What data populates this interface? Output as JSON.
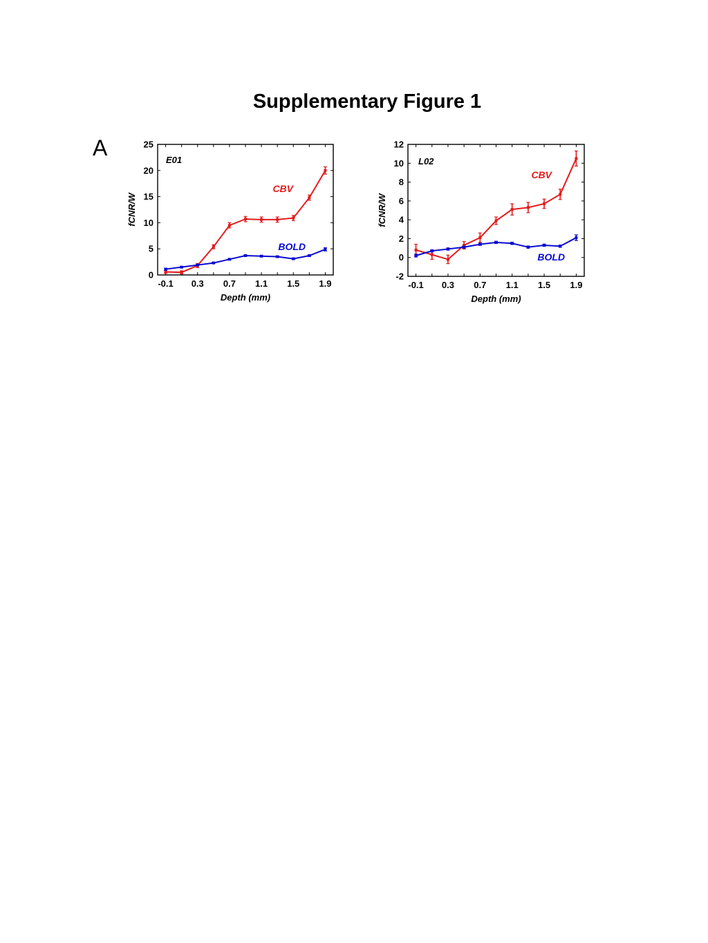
{
  "page": {
    "title": "Supplementary Figure 1",
    "panel_label": "A"
  },
  "chart_data": [
    {
      "type": "line",
      "panel": "E01",
      "xlabel": "Depth (mm)",
      "ylabel": "fCNR/W",
      "xlim": [
        -0.2,
        2.0
      ],
      "ylim": [
        0,
        25
      ],
      "xticks": [
        "-0.1",
        "0.3",
        "0.7",
        "1.1",
        "1.5",
        "1.9"
      ],
      "xtick_values": [
        -0.1,
        0.3,
        0.7,
        1.1,
        1.5,
        1.9
      ],
      "yticks": [
        "0",
        "5",
        "10",
        "15",
        "20",
        "25"
      ],
      "ytick_values": [
        0,
        5,
        10,
        15,
        20,
        25
      ],
      "grid": false,
      "x": [
        -0.1,
        0.1,
        0.3,
        0.5,
        0.7,
        0.9,
        1.1,
        1.3,
        1.5,
        1.7,
        1.9
      ],
      "series": [
        {
          "name": "CBV",
          "color": "#e41a1c",
          "values": [
            0.6,
            0.5,
            1.8,
            5.4,
            9.5,
            10.7,
            10.6,
            10.6,
            10.9,
            14.8,
            20.0
          ],
          "errors": [
            0.3,
            0.3,
            0.4,
            0.4,
            0.5,
            0.5,
            0.5,
            0.5,
            0.5,
            0.5,
            0.7
          ]
        },
        {
          "name": "BOLD",
          "color": "#0a0ad0",
          "values": [
            1.1,
            1.5,
            1.9,
            2.3,
            3.0,
            3.7,
            3.6,
            3.5,
            3.1,
            3.7,
            4.9
          ],
          "errors": [
            0.2,
            0.15,
            0.15,
            0.15,
            0.15,
            0.15,
            0.15,
            0.15,
            0.15,
            0.15,
            0.3
          ]
        }
      ]
    },
    {
      "type": "line",
      "panel": "L02",
      "xlabel": "Depth (mm)",
      "ylabel": "fCNR/W",
      "xlim": [
        -0.2,
        2.0
      ],
      "ylim": [
        -2,
        12
      ],
      "xticks": [
        "-0.1",
        "0.3",
        "0.7",
        "1.1",
        "1.5",
        "1.9"
      ],
      "xtick_values": [
        -0.1,
        0.3,
        0.7,
        1.1,
        1.5,
        1.9
      ],
      "yticks": [
        "-2",
        "0",
        "2",
        "4",
        "6",
        "8",
        "10",
        "12"
      ],
      "ytick_values": [
        -2,
        0,
        2,
        4,
        6,
        8,
        10,
        12
      ],
      "grid": false,
      "x": [
        -0.1,
        0.1,
        0.3,
        0.5,
        0.7,
        0.9,
        1.1,
        1.3,
        1.5,
        1.7,
        1.9
      ],
      "series": [
        {
          "name": "CBV",
          "color": "#e41a1c",
          "values": [
            0.8,
            0.3,
            -0.2,
            1.3,
            2.1,
            3.9,
            5.1,
            5.3,
            5.7,
            6.7,
            10.5
          ],
          "errors": [
            0.6,
            0.5,
            0.45,
            0.4,
            0.5,
            0.4,
            0.6,
            0.55,
            0.5,
            0.55,
            0.8
          ]
        },
        {
          "name": "BOLD",
          "color": "#0a0ad0",
          "values": [
            0.2,
            0.7,
            0.9,
            1.1,
            1.4,
            1.6,
            1.5,
            1.1,
            1.3,
            1.2,
            2.1
          ],
          "errors": [
            0.15,
            0.12,
            0.12,
            0.12,
            0.12,
            0.12,
            0.12,
            0.12,
            0.12,
            0.12,
            0.3
          ]
        }
      ]
    }
  ]
}
